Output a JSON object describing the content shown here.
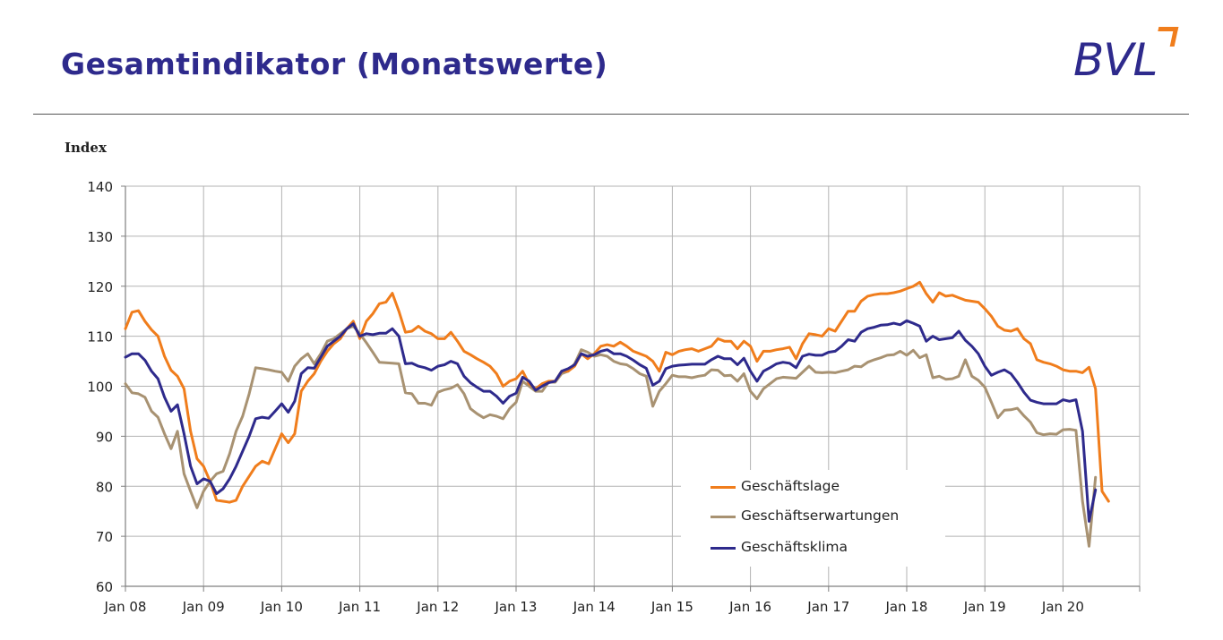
{
  "page": {
    "title": "Gesamtindikator (Monatswerte)",
    "logo_text": "BVL"
  },
  "chart_data": {
    "type": "line",
    "ylabel": "Index",
    "ylim": [
      60,
      140
    ],
    "yticks": [
      60,
      70,
      80,
      90,
      100,
      110,
      120,
      130,
      140
    ],
    "xlabels": [
      "Jan 08",
      "Jan 09",
      "Jan 10",
      "Jan 11",
      "Jan 12",
      "Jan 13",
      "Jan 14",
      "Jan 15",
      "Jan 16",
      "Jan 17",
      "Jan 18",
      "Jan 19",
      "Jan 20"
    ],
    "x_start": "2008-01",
    "grid": true,
    "legend_position": "bottom-right",
    "series": [
      {
        "name": "Geschäftslage",
        "color": "#f07d1c",
        "values": [
          111.5,
          114.8,
          115.1,
          113.0,
          111.3,
          110.0,
          106.0,
          103.2,
          102.0,
          99.5,
          91.0,
          85.5,
          84.0,
          81.0,
          77.2,
          77.0,
          76.8,
          77.2,
          80.0,
          82.0,
          84.0,
          85.0,
          84.5,
          87.5,
          90.5,
          88.7,
          90.5,
          99.0,
          101.0,
          102.5,
          105.0,
          107.0,
          108.5,
          109.5,
          111.5,
          113.0,
          109.5,
          113.0,
          114.5,
          116.5,
          116.8,
          118.6,
          115.0,
          110.8,
          111.0,
          112.0,
          111.0,
          110.5,
          109.5,
          109.5,
          110.8,
          109.0,
          107.0,
          106.3,
          105.5,
          104.8,
          104.0,
          102.5,
          100.0,
          101.0,
          101.5,
          103.0,
          100.5,
          99.5,
          100.5,
          101.0,
          101.0,
          103.0,
          103.0,
          104.0,
          106.5,
          105.5,
          106.5,
          108.0,
          108.3,
          108.0,
          108.8,
          108.0,
          107.0,
          106.5,
          106.0,
          105.0,
          103.0,
          106.8,
          106.3,
          107.0,
          107.3,
          107.5,
          107.0,
          107.5,
          108.0,
          109.5,
          109.0,
          109.0,
          107.5,
          109.0,
          108.0,
          105.0,
          107.0,
          107.0,
          107.3,
          107.5,
          107.8,
          105.5,
          108.5,
          110.5,
          110.3,
          110.0,
          111.5,
          111.0,
          113.0,
          115.0,
          115.0,
          117.0,
          118.0,
          118.3,
          118.5,
          118.5,
          118.7,
          119.0,
          119.5,
          120.0,
          120.8,
          118.5,
          116.8,
          118.7,
          118.0,
          118.2,
          117.7,
          117.2,
          117.0,
          116.8,
          115.5,
          114.0,
          112.0,
          111.2,
          111.0,
          111.5,
          109.5,
          108.5,
          105.3,
          104.8,
          104.5,
          104.0,
          103.3,
          103.0,
          103.0,
          102.7,
          103.8,
          99.5,
          79.0,
          77.0
        ]
      },
      {
        "name": "Geschäftserwartungen",
        "color": "#a89272",
        "values": [
          100.5,
          98.7,
          98.5,
          97.8,
          95.0,
          93.8,
          90.5,
          87.5,
          91.0,
          82.5,
          79.0,
          75.7,
          79.0,
          81.0,
          82.5,
          83.0,
          86.5,
          91.0,
          94.0,
          98.5,
          103.7,
          103.5,
          103.3,
          103.0,
          102.8,
          101.0,
          104.0,
          105.5,
          106.5,
          104.5,
          106.5,
          109.0,
          109.5,
          110.5,
          111.5,
          112.0,
          110.5,
          108.7,
          106.8,
          104.8,
          104.7,
          104.6,
          104.5,
          98.7,
          98.5,
          96.6,
          96.6,
          96.2,
          98.8,
          99.3,
          99.6,
          100.3,
          98.5,
          95.5,
          94.5,
          93.7,
          94.3,
          94.0,
          93.5,
          95.5,
          96.8,
          101.0,
          100.0,
          99.0,
          99.0,
          100.8,
          100.8,
          102.5,
          103.0,
          104.5,
          107.3,
          106.8,
          106.0,
          106.3,
          106.0,
          105.0,
          104.5,
          104.3,
          103.5,
          102.5,
          102.0,
          96.0,
          99.0,
          100.5,
          102.2,
          101.9,
          101.9,
          101.7,
          102.0,
          102.2,
          103.3,
          103.2,
          102.1,
          102.2,
          101.0,
          102.5,
          99.0,
          97.5,
          99.5,
          100.5,
          101.5,
          101.8,
          101.7,
          101.6,
          102.8,
          104.0,
          102.8,
          102.7,
          102.8,
          102.7,
          103.0,
          103.3,
          104.0,
          103.9,
          104.8,
          105.3,
          105.7,
          106.2,
          106.3,
          107.0,
          106.2,
          107.2,
          105.7,
          106.3,
          101.7,
          102.0,
          101.4,
          101.5,
          102.0,
          105.3,
          102.0,
          101.2,
          99.8,
          96.8,
          93.7,
          95.2,
          95.3,
          95.6,
          94.1,
          92.8,
          90.7,
          90.3,
          90.5,
          90.4,
          91.3,
          91.4,
          91.2,
          77.0,
          68.0,
          81.8
        ]
      },
      {
        "name": "Geschäftsklima",
        "color": "#2e2a8c",
        "values": [
          105.8,
          106.5,
          106.5,
          105.2,
          103.0,
          101.5,
          97.8,
          95.0,
          96.3,
          90.5,
          84.0,
          80.5,
          81.5,
          81.0,
          78.5,
          79.5,
          81.5,
          84.0,
          87.0,
          90.0,
          93.5,
          93.8,
          93.6,
          95.0,
          96.5,
          94.8,
          97.0,
          102.5,
          103.7,
          103.6,
          105.8,
          108.0,
          109.0,
          110.0,
          111.5,
          112.5,
          110.0,
          110.5,
          110.3,
          110.6,
          110.6,
          111.5,
          110.0,
          104.5,
          104.6,
          104.0,
          103.7,
          103.2,
          104.0,
          104.3,
          105.0,
          104.5,
          102.0,
          100.7,
          99.8,
          99.0,
          99.0,
          98.0,
          96.6,
          98.0,
          98.6,
          101.8,
          101.0,
          99.2,
          100.0,
          100.7,
          101.0,
          103.0,
          103.5,
          104.3,
          106.5,
          106.0,
          106.3,
          107.0,
          107.3,
          106.5,
          106.5,
          106.0,
          105.2,
          104.3,
          103.6,
          100.2,
          101.0,
          103.5,
          104.0,
          104.2,
          104.3,
          104.4,
          104.4,
          104.4,
          105.3,
          106.0,
          105.5,
          105.5,
          104.3,
          105.6,
          103.0,
          101.0,
          103.0,
          103.7,
          104.5,
          104.8,
          104.6,
          103.7,
          106.0,
          106.4,
          106.2,
          106.2,
          106.8,
          107.0,
          108.0,
          109.3,
          109.0,
          110.8,
          111.5,
          111.8,
          112.2,
          112.3,
          112.6,
          112.3,
          113.1,
          112.6,
          112.0,
          109.0,
          110.0,
          109.3,
          109.5,
          109.7,
          111.0,
          109.2,
          108.0,
          106.5,
          104.0,
          102.2,
          102.8,
          103.3,
          102.5,
          100.8,
          98.8,
          97.2,
          96.8,
          96.5,
          96.5,
          96.5,
          97.3,
          97.0,
          97.3,
          91.0,
          73.0,
          79.3
        ]
      }
    ]
  }
}
